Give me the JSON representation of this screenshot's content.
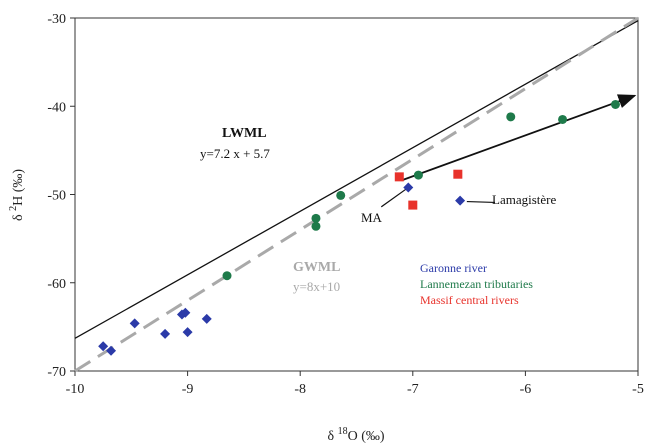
{
  "chart_data": {
    "type": "scatter",
    "title": "",
    "xlabel": {
      "prefix": "δ ",
      "sup": "18",
      "main": "O (‰)"
    },
    "ylabel": {
      "prefix": "δ ",
      "sup": "2",
      "main": "H (‰)"
    },
    "xlim": [
      -10,
      -5
    ],
    "ylim": [
      -70,
      -30
    ],
    "xticks": [
      -10,
      -9,
      -8,
      -7,
      -6,
      -5
    ],
    "yticks": [
      -70,
      -60,
      -50,
      -40,
      -30
    ],
    "grid": false,
    "series": [
      {
        "name": "Garonne river",
        "marker": "diamond",
        "color": "#2b3aa8",
        "points": [
          [
            -9.75,
            -67.2
          ],
          [
            -9.68,
            -67.7
          ],
          [
            -9.47,
            -64.6
          ],
          [
            -9.2,
            -65.8
          ],
          [
            -9.05,
            -63.6
          ],
          [
            -9.02,
            -63.4
          ],
          [
            -9.0,
            -65.6
          ],
          [
            -8.83,
            -64.1
          ],
          [
            -7.04,
            -49.2
          ],
          [
            -6.58,
            -50.7
          ]
        ]
      },
      {
        "name": "Lannemezan tributaries",
        "marker": "circle",
        "color": "#1e7a4a",
        "points": [
          [
            -8.65,
            -59.2
          ],
          [
            -7.86,
            -52.7
          ],
          [
            -7.86,
            -53.6
          ],
          [
            -7.64,
            -50.1
          ],
          [
            -6.95,
            -47.8
          ],
          [
            -6.13,
            -41.2
          ],
          [
            -5.67,
            -41.5
          ],
          [
            -5.2,
            -39.8
          ]
        ]
      },
      {
        "name": "Massif central rivers",
        "marker": "square",
        "color": "#e8322b",
        "points": [
          [
            -7.12,
            -48.0
          ],
          [
            -7.0,
            -51.2
          ],
          [
            -6.6,
            -47.7
          ]
        ]
      }
    ],
    "lines": [
      {
        "name": "LWML",
        "equation": "y=7.2 x + 5.7",
        "slope": 7.2,
        "intercept": 5.7,
        "style": "solid",
        "color": "#111111"
      },
      {
        "name": "GWML",
        "equation": "y=8x+10",
        "slope": 8,
        "intercept": 10,
        "style": "dashed",
        "color": "#a9a9a9"
      }
    ],
    "arrow": {
      "from": [
        -7.1,
        -48.4
      ],
      "to": [
        -5.03,
        -38.8
      ]
    },
    "annotations": [
      {
        "text": "MA",
        "pointer_from": [
          -7.28,
          -51.4
        ],
        "pointer_to": [
          -7.05,
          -49.3
        ]
      },
      {
        "text": "Lamagistère",
        "pointer_from": [
          -6.27,
          -50.9
        ],
        "pointer_to": [
          -6.52,
          -50.8
        ]
      }
    ],
    "legend": {
      "placement": "inside-bottom-right",
      "entries": [
        "Garonne river",
        "Lannemezan tributaries",
        "Massif central rivers"
      ]
    }
  }
}
